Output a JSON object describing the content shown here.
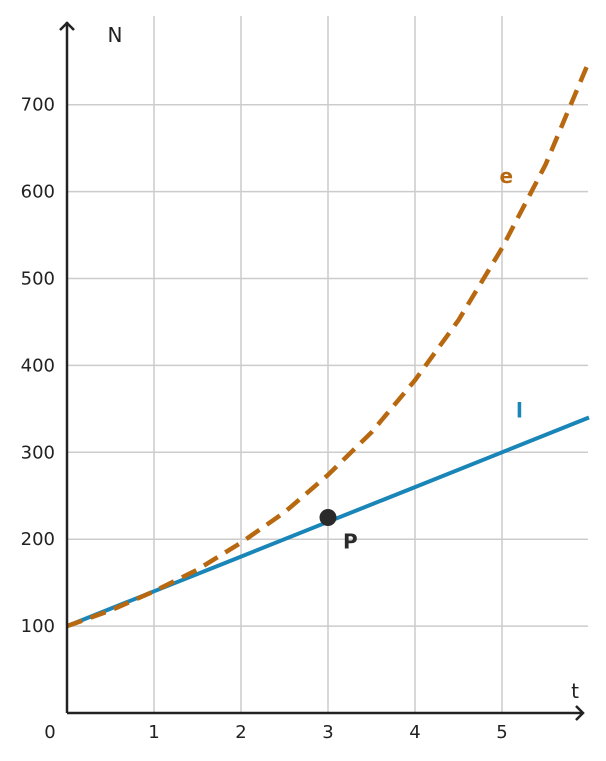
{
  "chart_data": {
    "type": "line",
    "xlabel": "t",
    "ylabel": "N",
    "origin_label": "0",
    "xlim": [
      0,
      6
    ],
    "ylim": [
      0,
      800
    ],
    "x_ticks": [
      1,
      2,
      3,
      4,
      5
    ],
    "y_ticks": [
      100,
      200,
      300,
      400,
      500,
      600,
      700
    ],
    "x_tick_labels": [
      "1",
      "2",
      "3",
      "4",
      "5"
    ],
    "y_tick_labels": [
      "100",
      "200",
      "300",
      "400",
      "500",
      "600",
      "700"
    ],
    "grid": true,
    "series": [
      {
        "name": "l",
        "style": "solid",
        "color": "#1a86b8",
        "x": [
          0,
          1,
          2,
          3,
          4,
          5,
          6
        ],
        "y": [
          100,
          140,
          180,
          220,
          260,
          300,
          340
        ]
      },
      {
        "name": "e",
        "style": "dashed",
        "color": "#b8680f",
        "x": [
          0,
          0.5,
          1,
          1.5,
          2,
          2.5,
          3,
          3.5,
          4,
          4.5,
          5,
          5.5,
          6
        ],
        "y": [
          100,
          118,
          140,
          165,
          196,
          231,
          274,
          323,
          383,
          452,
          535,
          631,
          750
        ]
      }
    ],
    "points": [
      {
        "label": "P",
        "x": 3,
        "y": 225,
        "color": "#2a2a2a"
      }
    ],
    "annotations": [
      {
        "text": "e",
        "color": "#b8680f",
        "x": 5.05,
        "y": 610
      },
      {
        "text": "l",
        "color": "#1a86b8",
        "x": 5.2,
        "y": 340
      }
    ]
  }
}
